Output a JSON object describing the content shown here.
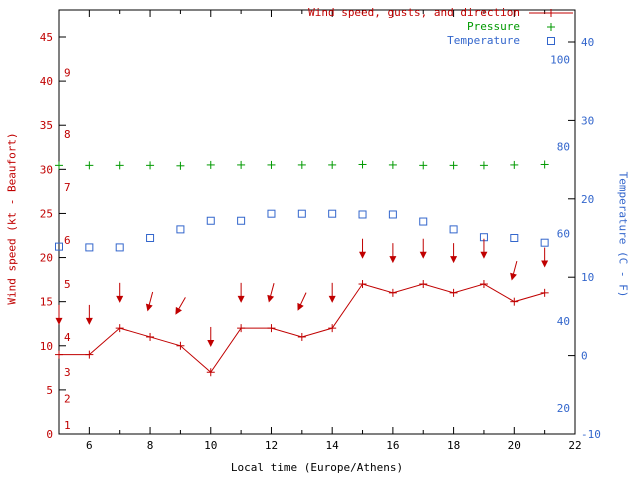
{
  "chart_data": {
    "type": "line",
    "title": "",
    "xlabel": "Local time (Europe/Athens)",
    "x_range": [
      5,
      22
    ],
    "x_major_ticks": [
      6,
      8,
      10,
      12,
      14,
      16,
      18,
      20,
      22
    ],
    "x_minor_step": 1,
    "y_left": {
      "label": "Wind speed (kt - Beaufort)",
      "ticks": [
        0,
        5,
        10,
        15,
        20,
        25,
        30,
        35,
        40,
        45
      ],
      "range": [
        0,
        48
      ],
      "color": "#c00000",
      "beaufort_labels": [
        "1",
        "2",
        "3",
        "4",
        "5",
        "6",
        "7",
        "8",
        "9"
      ],
      "beaufort_kt_positions": [
        1,
        4,
        7,
        11,
        17,
        22,
        28,
        34,
        41
      ]
    },
    "y_right": {
      "label": "Temperature (C - F)",
      "ticks_c": [
        -10,
        0,
        10,
        20,
        30,
        40
      ],
      "range_c": [
        -10,
        44
      ],
      "fahrenheit_inner_labels": [
        20,
        40,
        60,
        80,
        100
      ],
      "color": "#3366cc"
    },
    "hours": [
      5,
      6,
      7,
      8,
      9,
      10,
      11,
      12,
      13,
      14,
      15,
      16,
      17,
      18,
      19,
      20,
      21
    ],
    "series": [
      {
        "name": "Wind speed, gusts, and direction",
        "type": "linespoints",
        "marker": "plus",
        "color": "#c00000",
        "values_kt": [
          9,
          9,
          12,
          11,
          10,
          7,
          12,
          12,
          11,
          12,
          17,
          16,
          17,
          16,
          17,
          15,
          16
        ],
        "gusts_kt": [
          13.5,
          13.5,
          16,
          15,
          14.5,
          11,
          16,
          16,
          15,
          16,
          21,
          20.5,
          21,
          20.5,
          21,
          18.5,
          20
        ],
        "gust_arrow_angles_deg": [
          0,
          0,
          0,
          15,
          30,
          0,
          0,
          15,
          25,
          0,
          0,
          0,
          0,
          0,
          0,
          15,
          0
        ]
      },
      {
        "name": "Pressure",
        "type": "points",
        "marker": "plus",
        "color": "#009900",
        "values_inhg": [
          30.45,
          30.45,
          30.45,
          30.45,
          30.4,
          30.5,
          30.5,
          30.5,
          30.5,
          30.5,
          30.55,
          30.5,
          30.45,
          30.45,
          30.45,
          30.5,
          30.55
        ]
      },
      {
        "name": "Temperature",
        "type": "points",
        "marker": "open-square",
        "color": "#3366cc",
        "values_c": [
          13.9,
          13.8,
          13.8,
          15.0,
          16.1,
          17.2,
          17.2,
          18.1,
          18.1,
          18.1,
          18.0,
          18.0,
          17.1,
          16.1,
          15.1,
          15.0,
          14.4
        ]
      }
    ],
    "legend": {
      "position": "top-right",
      "entries": [
        {
          "label": "Wind speed, gusts, and direction",
          "marker": "line-plus",
          "color": "#c00000"
        },
        {
          "label": "Pressure",
          "marker": "plus",
          "color": "#009900"
        },
        {
          "label": "Temperature",
          "marker": "open-square",
          "color": "#3366cc"
        }
      ]
    },
    "axis_color": "#000000",
    "background": "#ffffff"
  }
}
